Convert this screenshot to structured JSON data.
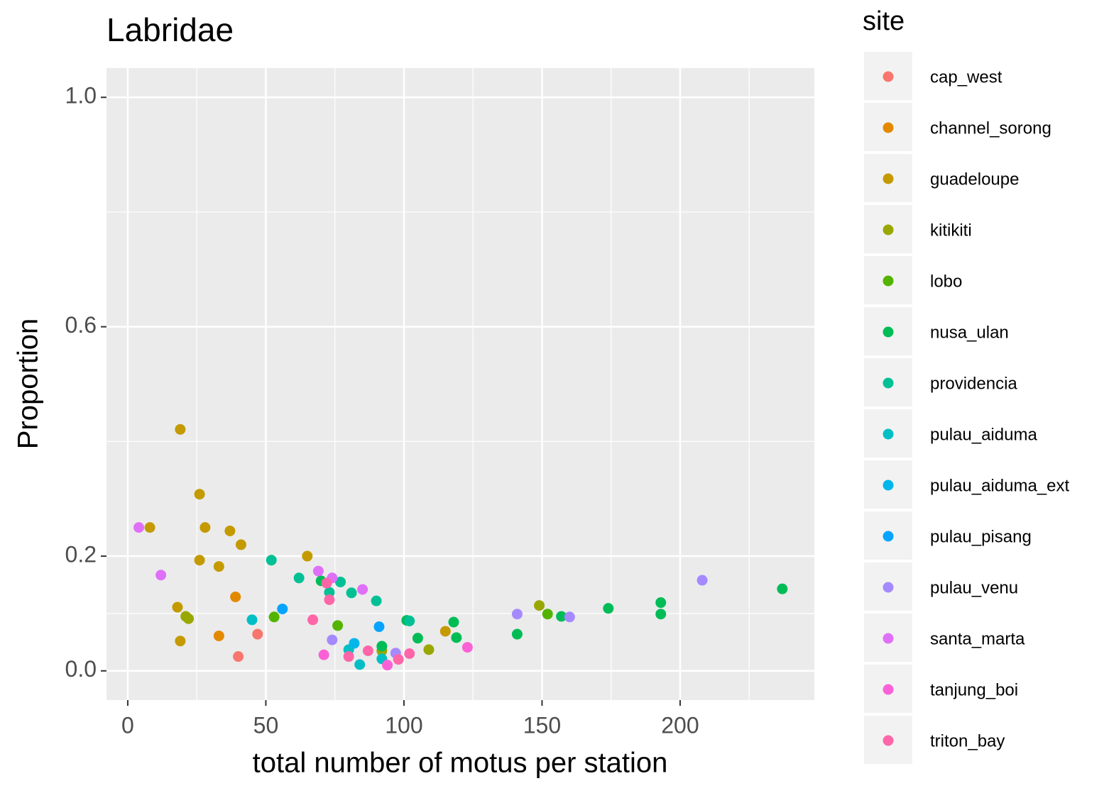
{
  "chart_data": {
    "type": "scatter",
    "title": "Labridae",
    "x_label": "total number of motus per station",
    "y_label": "Proportion",
    "legend_title": "site",
    "xlim": [
      -7.7,
      248.6
    ],
    "ylim": [
      -0.051,
      1.051
    ],
    "xticks": [
      0,
      50,
      100,
      150,
      200
    ],
    "yticks": [
      {
        "value": 0,
        "label": "0.0"
      },
      {
        "value": 0.2,
        "label": "0.2"
      },
      {
        "value": 0.6,
        "label": "0.6"
      },
      {
        "value": 1,
        "label": "1.0"
      }
    ],
    "grid": true,
    "legend_position": "right",
    "series": [
      {
        "name": "cap_west",
        "color": "#F8766D",
        "x": [
          47,
          40
        ],
        "values": [
          0.064,
          0.025
        ]
      },
      {
        "name": "channel_sorong",
        "color": "#E38900",
        "x": [
          39,
          33
        ],
        "values": [
          0.129,
          0.061
        ]
      },
      {
        "name": "guadeloupe",
        "color": "#C49A00",
        "x": [
          19,
          26,
          28,
          8,
          37,
          41,
          65,
          26,
          33,
          18,
          19,
          115
        ],
        "values": [
          0.421,
          0.308,
          0.25,
          0.25,
          0.244,
          0.22,
          0.2,
          0.193,
          0.182,
          0.111,
          0.052,
          0.069
        ]
      },
      {
        "name": "kitikiti",
        "color": "#99A800",
        "x": [
          21,
          22,
          149,
          109,
          92
        ],
        "values": [
          0.095,
          0.091,
          0.114,
          0.037,
          0.035
        ]
      },
      {
        "name": "lobo",
        "color": "#53B400",
        "x": [
          53,
          76,
          152
        ],
        "values": [
          0.094,
          0.079,
          0.099
        ]
      },
      {
        "name": "nusa_ulan",
        "color": "#00BC56",
        "x": [
          237,
          193,
          193,
          174,
          157,
          141,
          118,
          119,
          105,
          101,
          92,
          70
        ],
        "values": [
          0.143,
          0.119,
          0.099,
          0.109,
          0.095,
          0.064,
          0.085,
          0.058,
          0.057,
          0.088,
          0.043,
          0.157
        ]
      },
      {
        "name": "providencia",
        "color": "#00C094",
        "x": [
          52,
          62,
          77,
          81,
          90,
          73,
          102
        ],
        "values": [
          0.193,
          0.162,
          0.155,
          0.136,
          0.122,
          0.137,
          0.087
        ]
      },
      {
        "name": "pulau_aiduma",
        "color": "#00BFC4",
        "x": [
          45,
          80,
          84,
          92
        ],
        "values": [
          0.089,
          0.037,
          0.011,
          0.021
        ]
      },
      {
        "name": "pulau_aiduma_ext",
        "color": "#00B6EB",
        "x": [
          82
        ],
        "values": [
          0.048
        ]
      },
      {
        "name": "pulau_pisang",
        "color": "#06A4FF",
        "x": [
          56,
          91
        ],
        "values": [
          0.108,
          0.077
        ]
      },
      {
        "name": "pulau_venu",
        "color": "#A58AFF",
        "x": [
          208,
          141,
          160,
          74,
          97
        ],
        "values": [
          0.158,
          0.099,
          0.094,
          0.054,
          0.031
        ]
      },
      {
        "name": "santa_marta",
        "color": "#DF70F8",
        "x": [
          4,
          12,
          69,
          74,
          85
        ],
        "values": [
          0.25,
          0.167,
          0.174,
          0.162,
          0.142
        ]
      },
      {
        "name": "tanjung_boi",
        "color": "#FB61D7",
        "x": [
          71,
          94,
          123
        ],
        "values": [
          0.028,
          0.01,
          0.041
        ]
      },
      {
        "name": "triton_bay",
        "color": "#FF66A8",
        "x": [
          67,
          73,
          72,
          80,
          87,
          98,
          102
        ],
        "values": [
          0.089,
          0.124,
          0.153,
          0.025,
          0.035,
          0.02,
          0.03
        ]
      }
    ]
  }
}
